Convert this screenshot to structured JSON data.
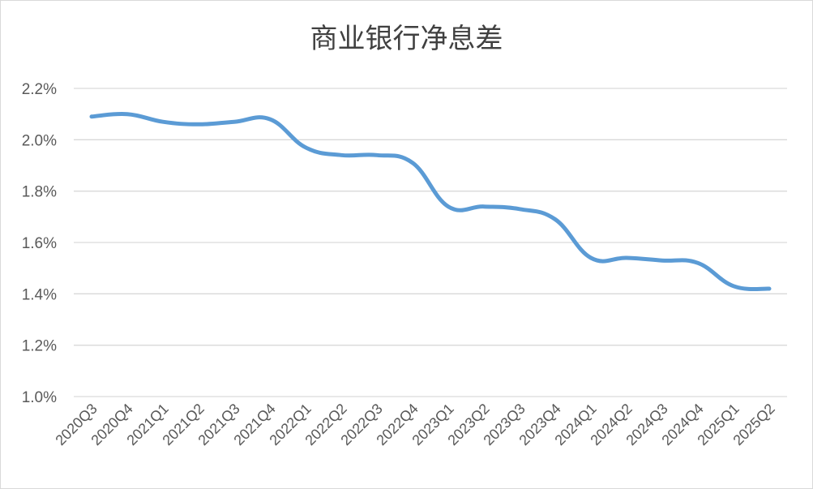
{
  "chart_data": {
    "type": "line",
    "title": "商业银行净息差",
    "categories": [
      "2020Q3",
      "2020Q4",
      "2021Q1",
      "2021Q2",
      "2021Q3",
      "2021Q4",
      "2022Q1",
      "2022Q2",
      "2022Q3",
      "2022Q4",
      "2023Q1",
      "2023Q2",
      "2023Q3",
      "2023Q4",
      "2024Q1",
      "2024Q2",
      "2024Q3",
      "2024Q4",
      "2025Q1",
      "2025Q2"
    ],
    "series": [
      {
        "values": [
          2.09,
          2.1,
          2.07,
          2.06,
          2.07,
          2.08,
          1.97,
          1.94,
          1.94,
          1.91,
          1.74,
          1.74,
          1.73,
          1.69,
          1.54,
          1.54,
          1.53,
          1.52,
          1.43,
          1.42
        ]
      }
    ],
    "ylim": [
      1.0,
      2.2
    ],
    "yticks": [
      "1.0%",
      "1.2%",
      "1.4%",
      "1.6%",
      "1.8%",
      "2.0%",
      "2.2%"
    ],
    "ytick_values": [
      1.0,
      1.2,
      1.4,
      1.6,
      1.8,
      2.0,
      2.2
    ],
    "grid": true,
    "line_color": "#5b9bd5",
    "grid_color": "#d9d9d9"
  }
}
